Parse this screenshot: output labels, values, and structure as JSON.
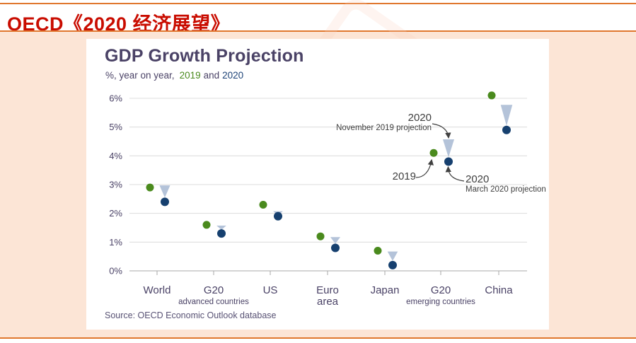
{
  "page": {
    "header": {
      "title": "OECD《2020 经济展望》"
    },
    "card": {
      "title": "GDP Growth Projection",
      "subtitle_prefix": "%, year on year,",
      "subtitle_year1": "2019",
      "subtitle_and": "and",
      "subtitle_year2": "2020",
      "source": "Source: OECD Economic Outlook database"
    },
    "colors": {
      "header_red": "#c90c00",
      "rule_orange": "#e0772e",
      "background_pink": "#fce5d6",
      "title_purple": "#4a4266",
      "green_2019": "#4a8a1d",
      "navy_2020": "#16406f",
      "triangle_blue": "#b4c3d9",
      "grid_gray": "#dcdcdc"
    }
  },
  "chart_data": {
    "type": "scatter",
    "title": "GDP Growth Projection",
    "subtitle": "%, year on year, 2019 and 2020",
    "ylabel": "%",
    "ylim": [
      0,
      6
    ],
    "yticks": [
      "0%",
      "1%",
      "2%",
      "3%",
      "4%",
      "5%",
      "6%"
    ],
    "grid": true,
    "legend_position": "annotations-on-plot",
    "categories": [
      {
        "label": "World",
        "label2": "",
        "sublabel": ""
      },
      {
        "label": "G20",
        "label2": "",
        "sublabel": "advanced countries"
      },
      {
        "label": "US",
        "label2": "",
        "sublabel": ""
      },
      {
        "label": "Euro",
        "label2": "area",
        "sublabel": ""
      },
      {
        "label": "Japan",
        "label2": "",
        "sublabel": ""
      },
      {
        "label": "G20",
        "label2": "",
        "sublabel": "emerging countries"
      },
      {
        "label": "China",
        "label2": "",
        "sublabel": ""
      }
    ],
    "series": [
      {
        "name": "2019",
        "marker": "dot",
        "color": "#4a8a1d",
        "values": [
          2.9,
          1.6,
          2.3,
          1.2,
          0.7,
          4.1,
          6.1
        ]
      },
      {
        "name": "2020 November 2019 projection",
        "marker": "triangle-down",
        "color": "#b4c3d9",
        "values": [
          2.9,
          1.5,
          2.0,
          1.1,
          0.6,
          4.5,
          5.7
        ]
      },
      {
        "name": "2020 March 2020 projection",
        "marker": "dot",
        "color": "#16406f",
        "values": [
          2.4,
          1.3,
          1.9,
          0.8,
          0.2,
          3.8,
          4.9
        ]
      }
    ],
    "annotations": [
      {
        "line1": "2020",
        "line2": "November 2019 projection"
      },
      {
        "line1": "2019",
        "line2": ""
      },
      {
        "line1": "2020",
        "line2": "March 2020 projection"
      }
    ]
  }
}
